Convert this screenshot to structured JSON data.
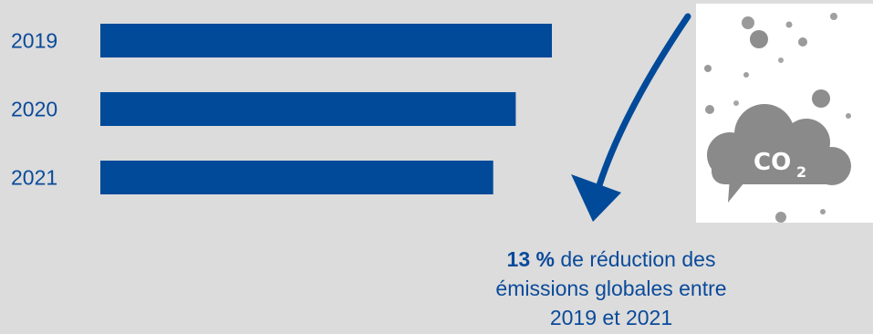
{
  "chart_data": {
    "type": "bar",
    "orientation": "horizontal",
    "categories": [
      "2019",
      "2020",
      "2021"
    ],
    "values": [
      100,
      92,
      87
    ],
    "colors": {
      "bar": "#004a99",
      "text": "#0a4a9a",
      "background": "#dcdcdc",
      "arrow": "#004a99"
    }
  },
  "annotation": {
    "highlight": "13 %",
    "line1_rest": "de réduction des",
    "line2": "émissions globales entre",
    "line3": "2019 et 2021"
  },
  "icon": {
    "name": "co2-cloud-icon",
    "label_main": "CO",
    "label_sub": "2"
  }
}
